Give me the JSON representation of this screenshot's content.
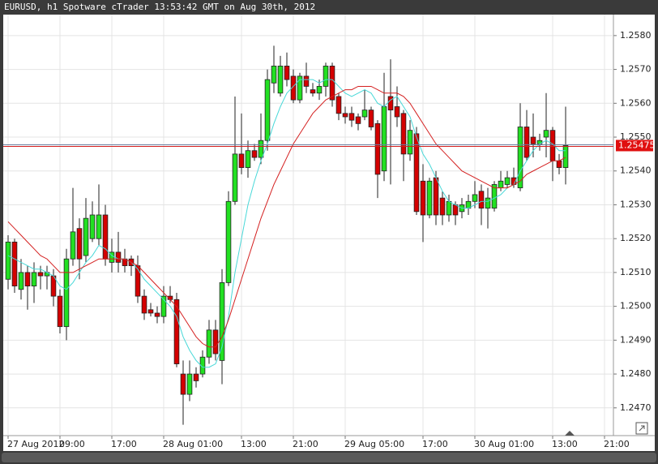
{
  "chart_data": {
    "type": "candlestick",
    "title": "EURUSD, h1 Spotware cTrader 13:53:42 GMT on Aug 30th, 2012",
    "up_color": "#22e022",
    "down_color": "#d40000",
    "grid": true,
    "xlim": [
      -0.75,
      93.375
    ],
    "xticks": [
      {
        "value": 0,
        "label": "27 Aug 2012"
      },
      {
        "value": 8,
        "label": "09:00"
      },
      {
        "value": 16,
        "label": "17:00"
      },
      {
        "value": 24,
        "label": "28 Aug 01:00"
      },
      {
        "value": 36,
        "label": "13:00"
      },
      {
        "value": 44,
        "label": "21:00"
      },
      {
        "value": 52,
        "label": "29 Aug 05:00"
      },
      {
        "value": 64,
        "label": "17:00"
      },
      {
        "value": 72,
        "label": "30 Aug 01:00"
      },
      {
        "value": 84,
        "label": "13:00"
      },
      {
        "value": 92,
        "label": "21:00"
      }
    ],
    "ylim": [
      1.24618,
      1.25862
    ],
    "yticks": [
      {
        "value": 1.247,
        "label": "1.2470"
      },
      {
        "value": 1.248,
        "label": "1.2480"
      },
      {
        "value": 1.249,
        "label": "1.2490"
      },
      {
        "value": 1.25,
        "label": "1.2500"
      },
      {
        "value": 1.251,
        "label": "1.2510"
      },
      {
        "value": 1.252,
        "label": "1.2520"
      },
      {
        "value": 1.253,
        "label": "1.2530"
      },
      {
        "value": 1.254,
        "label": "1.2540"
      },
      {
        "value": 1.255,
        "label": "1.2550"
      },
      {
        "value": 1.256,
        "label": "1.2560"
      },
      {
        "value": 1.257,
        "label": "1.2570"
      },
      {
        "value": 1.258,
        "label": "1.2580"
      }
    ],
    "current_price": 1.25475,
    "open": [
      1.2508,
      1.2519,
      1.2505,
      1.251,
      1.2506,
      1.251,
      1.2509,
      1.2509,
      1.2503,
      1.2494,
      1.2514,
      1.2523,
      1.2515,
      1.252,
      1.252,
      1.2527,
      1.2513,
      1.2516,
      1.2514,
      1.2514,
      1.2512,
      1.2503,
      1.2499,
      1.2498,
      1.2497,
      1.2503,
      1.2502,
      1.248,
      1.2474,
      1.248,
      1.248,
      1.2485,
      1.2493,
      1.2484,
      1.2507,
      1.2531,
      1.2545,
      1.2541,
      1.2546,
      1.2544,
      1.2549,
      1.2566,
      1.2563,
      1.2571,
      1.2568,
      1.2561,
      1.2568,
      1.2564,
      1.2563,
      1.2565,
      1.2571,
      1.2562,
      1.2557,
      1.2557,
      1.2556,
      1.2556,
      1.2558,
      1.2554,
      1.254,
      1.2562,
      1.2559,
      1.2557,
      1.2545,
      1.2551,
      1.2537,
      1.2527,
      1.2538,
      1.2532,
      1.2527,
      1.253,
      1.2528,
      1.2529,
      1.2531,
      1.2534,
      1.2529,
      1.2529,
      1.2535,
      1.2536,
      1.2538,
      1.2535,
      1.2553,
      1.255,
      1.2548,
      1.255,
      1.2552,
      1.2543,
      1.2541
    ],
    "high": [
      1.2521,
      1.252,
      1.2514,
      1.2512,
      1.2513,
      1.2512,
      1.2512,
      1.2511,
      1.2505,
      1.2517,
      1.2535,
      1.2526,
      1.2532,
      1.2531,
      1.2536,
      1.253,
      1.252,
      1.2522,
      1.2517,
      1.2515,
      1.2515,
      1.2505,
      1.2501,
      1.25,
      1.2506,
      1.2506,
      1.2504,
      1.2484,
      1.2484,
      1.2482,
      1.2487,
      1.2496,
      1.2496,
      1.2511,
      1.2534,
      1.2562,
      1.2557,
      1.2549,
      1.2548,
      1.2557,
      1.257,
      1.2577,
      1.2574,
      1.2575,
      1.257,
      1.2569,
      1.2572,
      1.2566,
      1.2567,
      1.2572,
      1.2572,
      1.2563,
      1.2559,
      1.2559,
      1.2557,
      1.2564,
      1.2559,
      1.2555,
      1.2569,
      1.2573,
      1.2565,
      1.2558,
      1.2555,
      1.2553,
      1.2542,
      1.2538,
      1.254,
      1.2534,
      1.2533,
      1.2531,
      1.2532,
      1.2533,
      1.2537,
      1.2536,
      1.2535,
      1.2537,
      1.254,
      1.254,
      1.2541,
      1.256,
      1.2558,
      1.2557,
      1.2551,
      1.2563,
      1.2553,
      1.2545,
      1.2559
    ],
    "low": [
      1.2505,
      1.2504,
      1.2502,
      1.2499,
      1.2501,
      1.2505,
      1.2505,
      1.25,
      1.2492,
      1.249,
      1.2512,
      1.2508,
      1.2513,
      1.2519,
      1.2518,
      1.2512,
      1.251,
      1.251,
      1.251,
      1.2509,
      1.2501,
      1.2496,
      1.2497,
      1.2495,
      1.2495,
      1.2501,
      1.2482,
      1.2465,
      1.2472,
      1.2476,
      1.2479,
      1.2483,
      1.2484,
      1.2477,
      1.2506,
      1.253,
      1.2539,
      1.2538,
      1.2543,
      1.2542,
      1.2546,
      1.2563,
      1.2562,
      1.2565,
      1.256,
      1.256,
      1.2563,
      1.2562,
      1.2561,
      1.2562,
      1.2559,
      1.2555,
      1.2554,
      1.2553,
      1.2552,
      1.2555,
      1.2552,
      1.2532,
      1.2537,
      1.2536,
      1.2553,
      1.2537,
      1.2543,
      1.2527,
      1.2519,
      1.2526,
      1.2524,
      1.2524,
      1.2525,
      1.2524,
      1.2526,
      1.2527,
      1.2529,
      1.2524,
      1.2523,
      1.2528,
      1.2534,
      1.2535,
      1.2535,
      1.2534,
      1.2543,
      1.2544,
      1.2546,
      1.2544,
      1.2537,
      1.2539,
      1.2536
    ],
    "close": [
      1.2519,
      1.2506,
      1.251,
      1.2506,
      1.251,
      1.2509,
      1.251,
      1.2503,
      1.2494,
      1.2514,
      1.2522,
      1.2514,
      1.2526,
      1.2527,
      1.2527,
      1.2514,
      1.2516,
      1.2513,
      1.2512,
      1.2512,
      1.2503,
      1.2498,
      1.2498,
      1.2497,
      1.2503,
      1.2502,
      1.2483,
      1.2474,
      1.248,
      1.2478,
      1.2485,
      1.2493,
      1.2486,
      1.2507,
      1.2531,
      1.2545,
      1.2541,
      1.2546,
      1.2544,
      1.2549,
      1.2567,
      1.2571,
      1.2571,
      1.2567,
      1.2561,
      1.2568,
      1.2565,
      1.2563,
      1.2565,
      1.2571,
      1.2561,
      1.2557,
      1.2556,
      1.2555,
      1.2554,
      1.2558,
      1.2553,
      1.2539,
      1.2559,
      1.2558,
      1.2556,
      1.2545,
      1.2552,
      1.2528,
      1.2527,
      1.2537,
      1.2527,
      1.2527,
      1.2531,
      1.2527,
      1.253,
      1.2531,
      1.2533,
      1.2529,
      1.2532,
      1.2536,
      1.2537,
      1.2538,
      1.2536,
      1.2553,
      1.2544,
      1.2548,
      1.2549,
      1.2552,
      1.2543,
      1.2541,
      1.25475
    ],
    "lines": [
      {
        "color": "#48d8d8",
        "values": [
          1.2515,
          1.2514,
          1.2513,
          1.2512,
          1.2511,
          1.2511,
          1.251,
          1.2509,
          1.2506,
          1.2505,
          1.2507,
          1.251,
          1.2513,
          1.2515,
          1.2518,
          1.2517,
          1.2515,
          1.2514,
          1.2514,
          1.2513,
          1.2511,
          1.2508,
          1.2506,
          1.2504,
          1.2502,
          1.25,
          1.2497,
          1.2491,
          1.2487,
          1.2484,
          1.2482,
          1.2482,
          1.2483,
          1.2488,
          1.2497,
          1.251,
          1.252,
          1.253,
          1.2537,
          1.2543,
          1.2548,
          1.2554,
          1.2559,
          1.2563,
          1.2565,
          1.2567,
          1.2567,
          1.2567,
          1.2566,
          1.2567,
          1.2567,
          1.2565,
          1.2563,
          1.2562,
          1.2563,
          1.2564,
          1.2563,
          1.256,
          1.2559,
          1.2561,
          1.2562,
          1.2559,
          1.2556,
          1.255,
          1.2545,
          1.2542,
          1.2538,
          1.2534,
          1.2531,
          1.253,
          1.2529,
          1.2529,
          1.253,
          1.2531,
          1.2531,
          1.2532,
          1.2533,
          1.2535,
          1.2536,
          1.254,
          1.2543,
          1.2546,
          1.2548,
          1.2549,
          1.2548,
          1.2546,
          1.2546
        ]
      },
      {
        "color": "#d42020",
        "values": [
          1.2525,
          1.2523,
          1.2521,
          1.2519,
          1.2517,
          1.2515,
          1.2514,
          1.2512,
          1.251,
          1.251,
          1.251,
          1.2511,
          1.2512,
          1.2513,
          1.2514,
          1.2514,
          1.2514,
          1.2514,
          1.2514,
          1.2513,
          1.2512,
          1.251,
          1.2508,
          1.2506,
          1.2504,
          1.2502,
          1.25,
          1.2497,
          1.2494,
          1.2491,
          1.2489,
          1.2488,
          1.2488,
          1.2491,
          1.2496,
          1.2502,
          1.2508,
          1.2514,
          1.252,
          1.2526,
          1.2531,
          1.2536,
          1.254,
          1.2544,
          1.2548,
          1.2551,
          1.2554,
          1.2557,
          1.2559,
          1.2561,
          1.2562,
          1.2563,
          1.2564,
          1.2564,
          1.2565,
          1.2565,
          1.2565,
          1.2564,
          1.2563,
          1.2563,
          1.2563,
          1.2562,
          1.256,
          1.2557,
          1.2554,
          1.2551,
          1.2548,
          1.2546,
          1.2544,
          1.2542,
          1.254,
          1.2539,
          1.2538,
          1.2537,
          1.2536,
          1.2535,
          1.2535,
          1.2535,
          1.2536,
          1.2537,
          1.2539,
          1.254,
          1.2541,
          1.2542,
          1.2543,
          1.2543,
          1.2544
        ]
      }
    ]
  }
}
